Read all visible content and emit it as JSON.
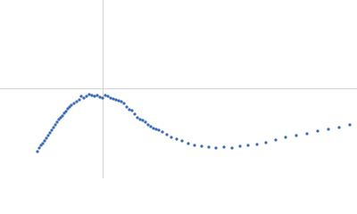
{
  "chart_data": {
    "type": "scatter",
    "x": [
      0.63,
      0.66,
      0.69,
      0.72,
      0.75,
      0.78,
      0.81,
      0.84,
      0.87,
      0.9,
      0.93,
      0.96,
      0.99,
      1.02,
      1.05,
      1.08,
      1.11,
      1.14,
      1.17,
      1.2,
      1.245,
      1.29,
      1.335,
      1.365,
      1.41,
      1.455,
      1.5,
      1.545,
      1.59,
      1.635,
      1.68,
      1.725,
      1.77,
      1.815,
      1.86,
      1.905,
      1.95,
      1.995,
      2.04,
      2.085,
      2.13,
      2.175,
      2.22,
      2.265,
      2.31,
      2.355,
      2.4,
      2.445,
      2.49,
      2.535,
      2.58,
      2.625,
      2.67,
      2.73,
      2.805,
      2.88,
      2.97,
      3.06,
      3.165,
      3.27,
      3.39,
      3.51,
      3.63,
      3.765,
      3.9,
      4.035,
      4.17,
      4.32,
      4.47,
      4.635,
      4.8,
      4.98,
      5.16,
      5.34,
      5.52,
      5.7,
      5.88
    ],
    "values": [
      0.33,
      0.374,
      0.407,
      0.429,
      0.462,
      0.495,
      0.528,
      0.561,
      0.594,
      0.627,
      0.66,
      0.693,
      0.726,
      0.748,
      0.77,
      0.803,
      0.825,
      0.858,
      0.88,
      0.902,
      0.924,
      0.946,
      0.968,
      1.012,
      0.99,
      1.012,
      1.034,
      1.023,
      1.012,
      1.023,
      1.001,
      0.99,
      1.023,
      1.012,
      0.99,
      0.979,
      0.968,
      0.957,
      0.946,
      0.924,
      0.88,
      0.847,
      0.836,
      0.792,
      0.748,
      0.726,
      0.715,
      0.693,
      0.66,
      0.638,
      0.616,
      0.605,
      0.594,
      0.572,
      0.539,
      0.506,
      0.484,
      0.462,
      0.429,
      0.407,
      0.396,
      0.385,
      0.374,
      0.385,
      0.374,
      0.396,
      0.407,
      0.418,
      0.44,
      0.473,
      0.506,
      0.528,
      0.55,
      0.583,
      0.605,
      0.627,
      0.66
    ],
    "color": "#3a6bb5",
    "xlim": [
      0,
      6
    ],
    "ylim": [
      0,
      2.2
    ],
    "vline": 1.732,
    "hline": 1.104
  }
}
